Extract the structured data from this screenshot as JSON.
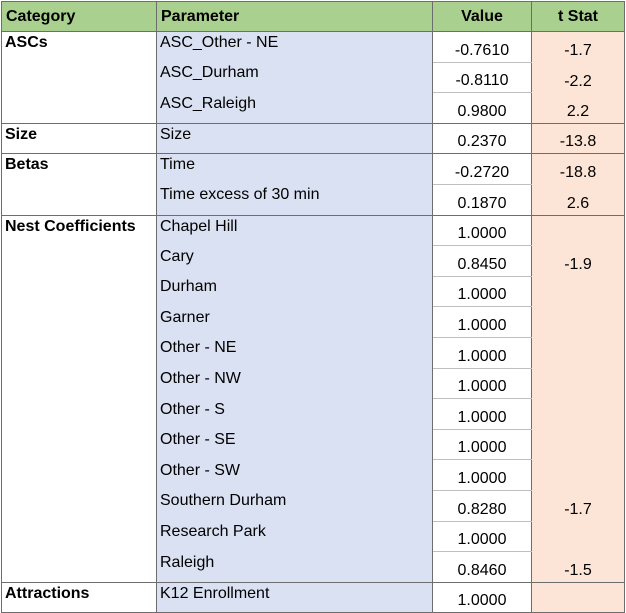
{
  "headers": {
    "category": "Category",
    "parameter": "Parameter",
    "value": "Value",
    "tstat": "t Stat"
  },
  "rows": [
    {
      "category": "ASCs",
      "parameter": "ASC_Other - NE",
      "value": "-0.7610",
      "tstat": "-1.7"
    },
    {
      "category": "",
      "parameter": "ASC_Durham",
      "value": "-0.8110",
      "tstat": "-2.2"
    },
    {
      "category": "",
      "parameter": "ASC_Raleigh",
      "value": "0.9800",
      "tstat": "2.2"
    },
    {
      "category": "Size",
      "parameter": "Size",
      "value": "0.2370",
      "tstat": "-13.8"
    },
    {
      "category": "Betas",
      "parameter": "Time",
      "value": "-0.2720",
      "tstat": "-18.8"
    },
    {
      "category": "",
      "parameter": "Time excess of 30 min",
      "value": "0.1870",
      "tstat": "2.6"
    },
    {
      "category": "Nest Coefficients",
      "parameter": "Chapel Hill",
      "value": "1.0000",
      "tstat": ""
    },
    {
      "category": "",
      "parameter": "Cary",
      "value": "0.8450",
      "tstat": "-1.9"
    },
    {
      "category": "",
      "parameter": "Durham",
      "value": "1.0000",
      "tstat": ""
    },
    {
      "category": "",
      "parameter": "Garner",
      "value": "1.0000",
      "tstat": ""
    },
    {
      "category": "",
      "parameter": "Other - NE",
      "value": "1.0000",
      "tstat": ""
    },
    {
      "category": "",
      "parameter": "Other - NW",
      "value": "1.0000",
      "tstat": ""
    },
    {
      "category": "",
      "parameter": "Other - S",
      "value": "1.0000",
      "tstat": ""
    },
    {
      "category": "",
      "parameter": "Other - SE",
      "value": "1.0000",
      "tstat": ""
    },
    {
      "category": "",
      "parameter": "Other - SW",
      "value": "1.0000",
      "tstat": ""
    },
    {
      "category": "",
      "parameter": "Southern Durham",
      "value": "0.8280",
      "tstat": "-1.7"
    },
    {
      "category": "",
      "parameter": "Research Park",
      "value": "1.0000",
      "tstat": ""
    },
    {
      "category": "",
      "parameter": "Raleigh",
      "value": "0.8460",
      "tstat": "-1.5"
    },
    {
      "category": "Attractions",
      "parameter": "K12 Enrollment",
      "value": "1.0000",
      "tstat": ""
    }
  ]
}
